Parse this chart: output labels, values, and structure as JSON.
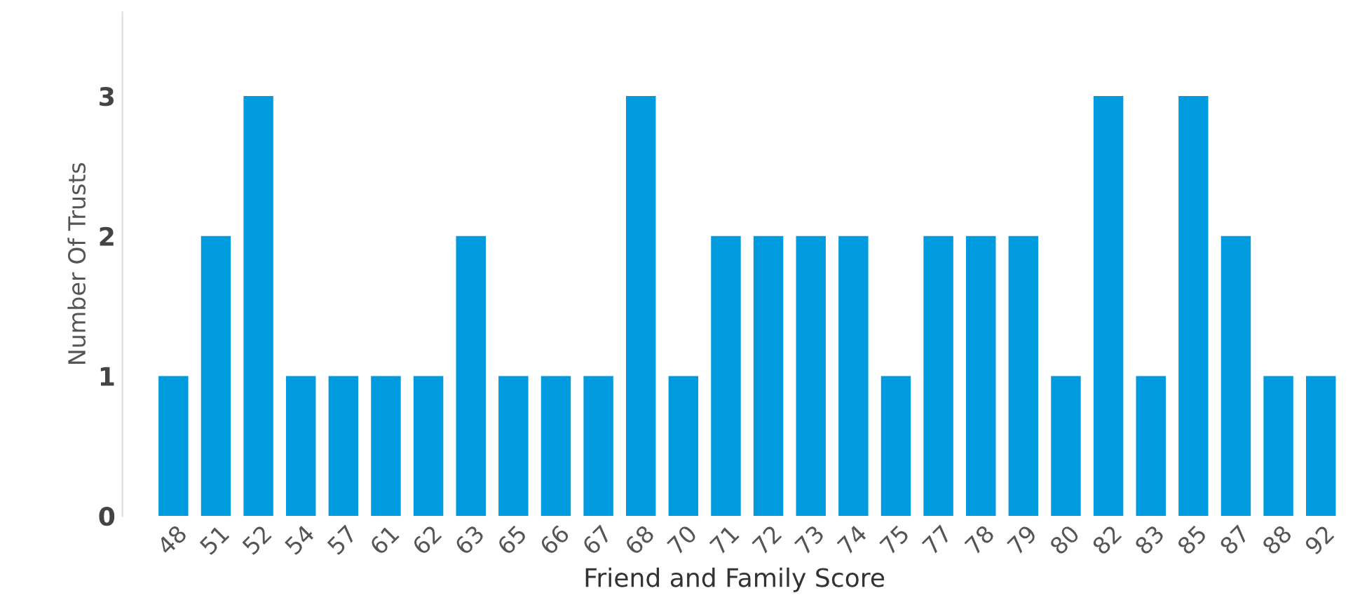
{
  "chart_data": {
    "type": "bar",
    "xlabel": "Friend and Family Score",
    "ylabel": "Number Of Trusts",
    "categories": [
      "48",
      "51",
      "52",
      "54",
      "57",
      "61",
      "62",
      "63",
      "65",
      "66",
      "67",
      "68",
      "70",
      "71",
      "72",
      "73",
      "74",
      "75",
      "77",
      "78",
      "79",
      "80",
      "82",
      "83",
      "85",
      "87",
      "88",
      "92"
    ],
    "values": [
      1,
      2,
      3,
      1,
      1,
      1,
      1,
      2,
      1,
      1,
      1,
      3,
      1,
      2,
      2,
      2,
      2,
      1,
      2,
      2,
      2,
      1,
      3,
      1,
      3,
      2,
      1,
      1
    ],
    "color": "#009ade",
    "ylim": [
      0,
      3.6
    ],
    "yticks": [
      0,
      1,
      2,
      3
    ],
    "grid": false,
    "legend": false
  }
}
